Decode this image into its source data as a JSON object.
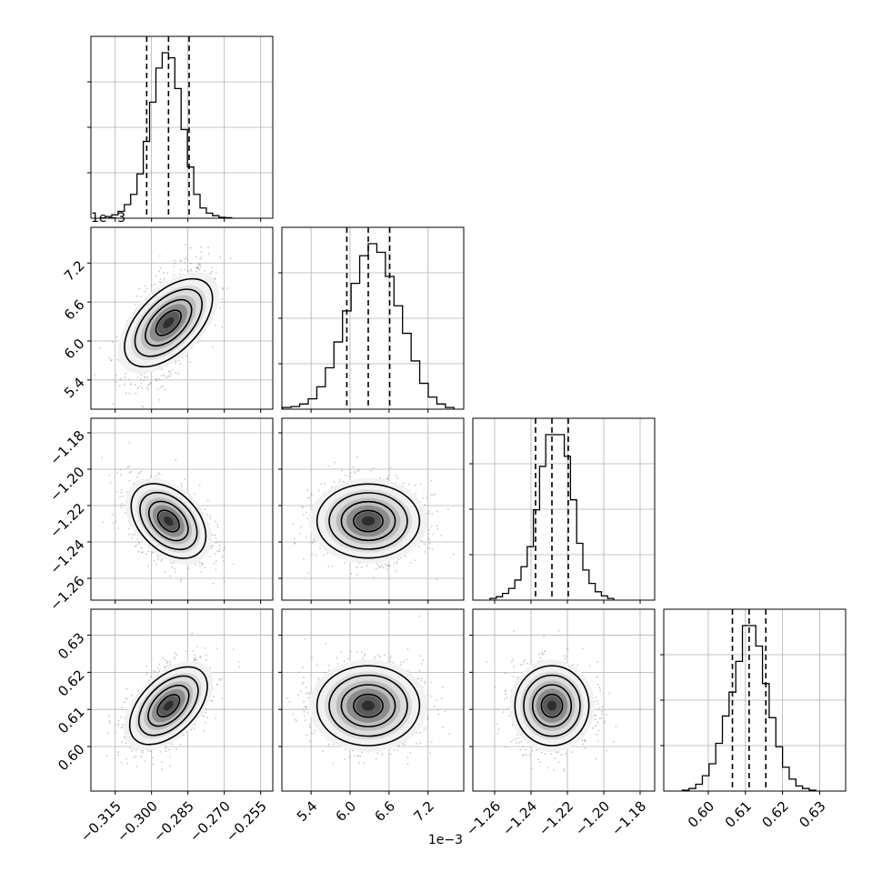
{
  "chart_data": {
    "type": "corner",
    "grid": true,
    "params": [
      {
        "range": [
          -0.325,
          -0.25
        ],
        "ticks": [
          -0.315,
          -0.3,
          -0.285,
          -0.27,
          -0.255
        ],
        "tick_labels": [
          "−0.315",
          "−0.300",
          "−0.285",
          "−0.270",
          "−0.255"
        ],
        "quantiles": [
          -0.302,
          -0.293,
          -0.2845
        ],
        "mean": -0.293,
        "sd": 0.0065,
        "hist": [
          1,
          2,
          4,
          8,
          14,
          26,
          45,
          68,
          88,
          97,
          94,
          76,
          52,
          30,
          14,
          6,
          3,
          1.5,
          0.5,
          0.3
        ],
        "offset_text": ""
      },
      {
        "range": [
          4.95,
          7.75
        ],
        "ticks": [
          5.4,
          6.0,
          6.6,
          7.2
        ],
        "tick_labels": [
          "5.4",
          "6.0",
          "6.6",
          "7.2"
        ],
        "quantiles": [
          5.95,
          6.28,
          6.61
        ],
        "mean": 6.28,
        "sd": 0.33,
        "hist": [
          1,
          1.5,
          3,
          6,
          13,
          24,
          39,
          57,
          73,
          89,
          96,
          91,
          77,
          60,
          44,
          28,
          15,
          7,
          3,
          1
        ],
        "offset_text": "1e−3"
      },
      {
        "range": [
          -1.272,
          -1.172
        ],
        "ticks": [
          -1.26,
          -1.24,
          -1.22,
          -1.2,
          -1.18
        ],
        "tick_labels": [
          "−1.26",
          "−1.24",
          "−1.22",
          "−1.20",
          "−1.18"
        ],
        "quantiles": [
          -1.2375,
          -1.2285,
          -1.2195
        ],
        "mean": -1.2285,
        "sd": 0.0085,
        "hist": [
          1,
          2,
          4,
          7,
          12,
          20,
          32,
          54,
          80,
          99,
          99,
          99,
          86,
          60,
          34,
          18,
          10,
          5,
          2.5,
          1
        ],
        "offset_text": "1e−3"
      },
      {
        "range": [
          0.588,
          0.637
        ],
        "ticks": [
          0.6,
          0.61,
          0.62,
          0.63
        ],
        "tick_labels": [
          "0.60",
          "0.61",
          "0.62",
          "0.63"
        ],
        "quantiles": [
          0.6065,
          0.611,
          0.6155
        ],
        "mean": 0.611,
        "sd": 0.0045,
        "hist": [
          0.5,
          1.5,
          4,
          9,
          16,
          28,
          44,
          58,
          76,
          97,
          97,
          85,
          63,
          43,
          26,
          14,
          7,
          3,
          1.5,
          0.5
        ],
        "offset_text": ""
      }
    ],
    "correlations": [
      [
        0,
        1,
        0.55
      ],
      [
        0,
        2,
        -0.4
      ],
      [
        0,
        3,
        0.5
      ],
      [
        1,
        2,
        0.0
      ],
      [
        1,
        3,
        0.0
      ],
      [
        2,
        3,
        0.0
      ]
    ],
    "contour_levels_sigma": [
      0.6,
      1.1,
      1.6,
      2.1
    ]
  }
}
